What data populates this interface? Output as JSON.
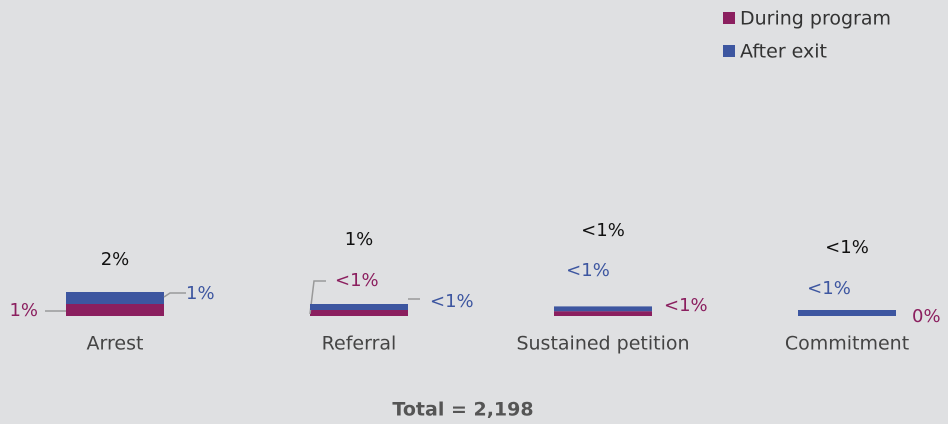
{
  "chart_data": {
    "type": "stacked-bar",
    "categories": [
      "Arrest",
      "Referral",
      "Sustained petition",
      "Commitment"
    ],
    "series": [
      {
        "name": "During program",
        "color": "#8b1f5f",
        "values": [
          1,
          0.5,
          0.4,
          0
        ],
        "value_labels": [
          "1%",
          "<1%",
          "<1%",
          "0%"
        ]
      },
      {
        "name": "After exit",
        "color": "#3d56a0",
        "values": [
          1,
          0.5,
          0.4,
          0.5
        ],
        "value_labels": [
          "1%",
          "<1%",
          "<1%",
          "<1%"
        ]
      }
    ],
    "totals": {
      "values": [
        2,
        1,
        0.8,
        0.5
      ],
      "value_labels": [
        "2%",
        "1%",
        "<1%",
        "<1%"
      ]
    },
    "note": "Total = 2,198"
  }
}
